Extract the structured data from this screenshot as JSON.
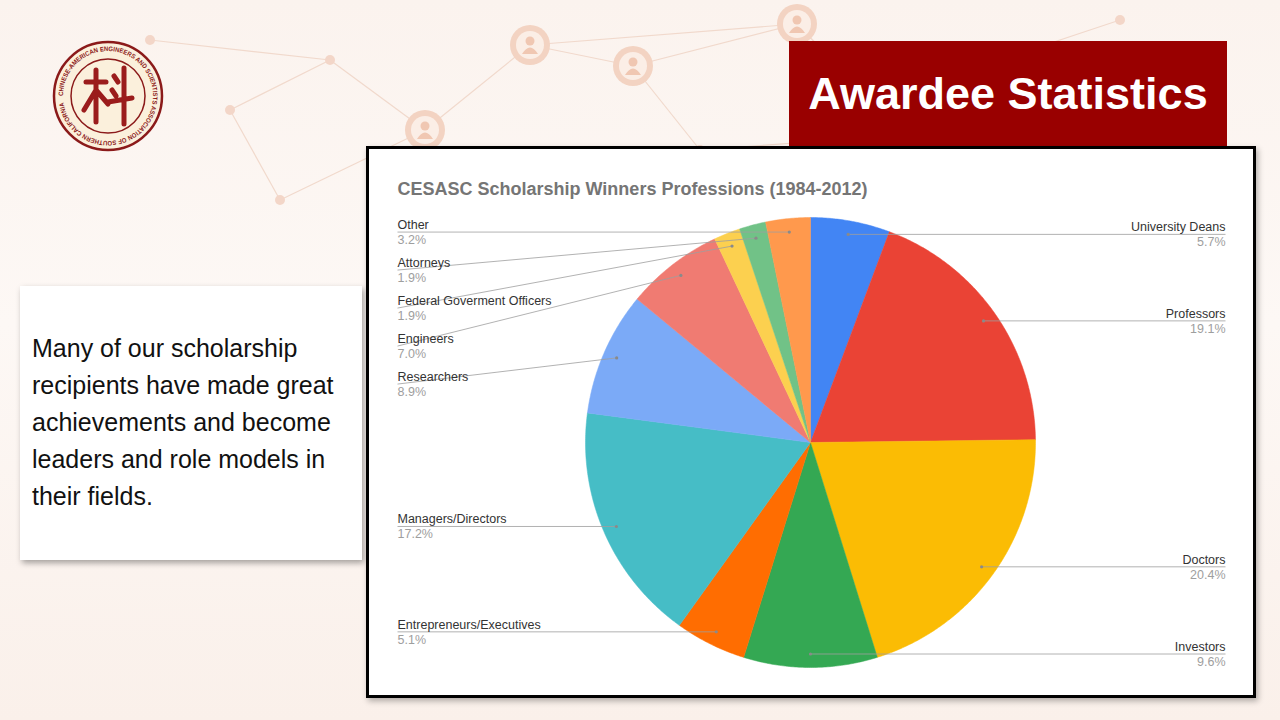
{
  "slide": {
    "heading": "Awardee Statistics",
    "text": "Many of our scholarship recipients have made great achievements and become leaders and role models in their fields.",
    "logo_text": "CHINESE-AMERICAN ENGINEERS AND SCIENTISTS ASSOCIATION OF SOUTHERN CALIFORNIA"
  },
  "chart_data": {
    "type": "pie",
    "title": "CESASC Scholarship Winners Professions (1984-2012)",
    "categories": [
      "University Deans",
      "Professors",
      "Doctors",
      "Investors",
      "Entrepreneurs/Executives",
      "Managers/Directors",
      "Researchers",
      "Engineers",
      "Federal Goverment Officers",
      "Attorneys",
      "Other"
    ],
    "values": [
      5.7,
      19.1,
      20.4,
      9.6,
      5.1,
      17.2,
      8.9,
      7.0,
      1.9,
      1.9,
      3.2
    ],
    "value_labels": [
      "5.7%",
      "19.1%",
      "20.4%",
      "9.6%",
      "5.1%",
      "17.2%",
      "8.9%",
      "7.0%",
      "1.9%",
      "1.9%",
      "3.2%"
    ],
    "colors": [
      "#4285f4",
      "#ea4335",
      "#fbbc04",
      "#34a853",
      "#ff6d01",
      "#46bdc6",
      "#7baaf7",
      "#f07b72",
      "#fcd04f",
      "#71c287",
      "#ff994d"
    ],
    "data_labels": true
  }
}
